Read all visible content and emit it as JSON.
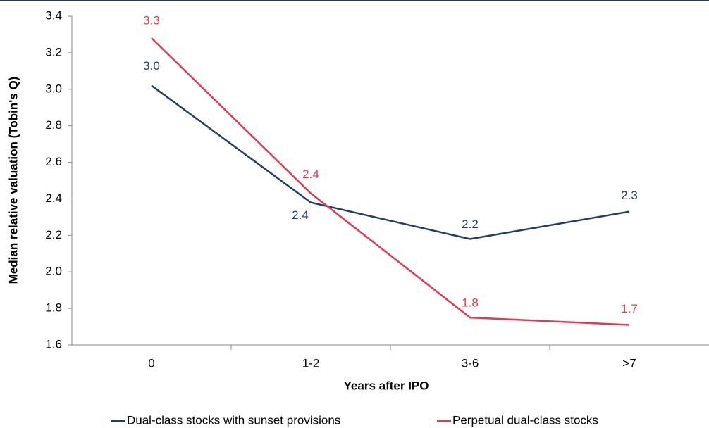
{
  "chart_data": {
    "type": "line",
    "x_label": "Years after IPO",
    "y_label": "Median relative valuation (Tobin's Q)",
    "categories": [
      "0",
      "1-2",
      "3-6",
      ">7"
    ],
    "series": [
      {
        "name": "Dual-class stocks with sunset provisions",
        "color": "#1f3f66",
        "values": [
          3.02,
          2.38,
          2.18,
          2.33
        ],
        "value_labels": [
          "3.0",
          "2.4",
          "2.2",
          "2.3"
        ]
      },
      {
        "name": "Perpetual dual-class stocks",
        "color": "#e8384f",
        "values": [
          3.28,
          2.43,
          1.75,
          1.71
        ],
        "value_labels": [
          "3.3",
          "2.4",
          "1.8",
          "1.7"
        ]
      }
    ],
    "ylim": [
      1.6,
      3.4
    ],
    "yticks": [
      1.6,
      1.8,
      {
        "value": 2,
        "label": "2.0"
      },
      2.2,
      2.4,
      2.6,
      2.8,
      {
        "value": 3,
        "label": "3.0"
      },
      3.2,
      3.4
    ],
    "grid": false,
    "legend": "bottom"
  }
}
